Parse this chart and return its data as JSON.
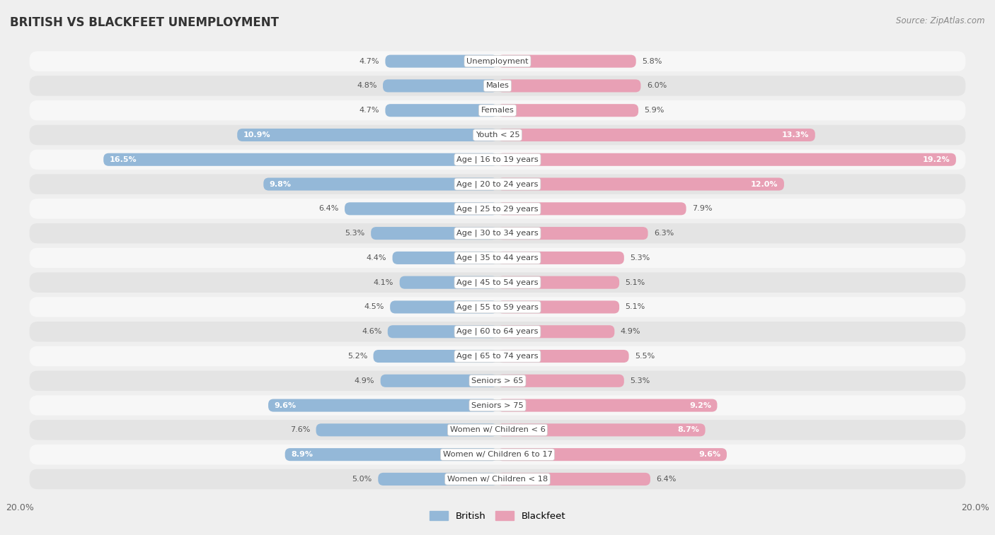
{
  "title": "BRITISH VS BLACKFEET UNEMPLOYMENT",
  "source": "Source: ZipAtlas.com",
  "categories": [
    "Unemployment",
    "Males",
    "Females",
    "Youth < 25",
    "Age | 16 to 19 years",
    "Age | 20 to 24 years",
    "Age | 25 to 29 years",
    "Age | 30 to 34 years",
    "Age | 35 to 44 years",
    "Age | 45 to 54 years",
    "Age | 55 to 59 years",
    "Age | 60 to 64 years",
    "Age | 65 to 74 years",
    "Seniors > 65",
    "Seniors > 75",
    "Women w/ Children < 6",
    "Women w/ Children 6 to 17",
    "Women w/ Children < 18"
  ],
  "british": [
    4.7,
    4.8,
    4.7,
    10.9,
    16.5,
    9.8,
    6.4,
    5.3,
    4.4,
    4.1,
    4.5,
    4.6,
    5.2,
    4.9,
    9.6,
    7.6,
    8.9,
    5.0
  ],
  "blackfeet": [
    5.8,
    6.0,
    5.9,
    13.3,
    19.2,
    12.0,
    7.9,
    6.3,
    5.3,
    5.1,
    5.1,
    4.9,
    5.5,
    5.3,
    9.2,
    8.7,
    9.6,
    6.4
  ],
  "british_color": "#94b8d8",
  "blackfeet_color": "#e8a0b5",
  "british_dark_color": "#5b8fc2",
  "blackfeet_dark_color": "#d9607a",
  "background_color": "#efefef",
  "row_light": "#f7f7f7",
  "row_dark": "#e4e4e4",
  "axis_limit": 20.0,
  "legend_british": "British",
  "legend_blackfeet": "Blackfeet",
  "label_threshold": 8.5
}
